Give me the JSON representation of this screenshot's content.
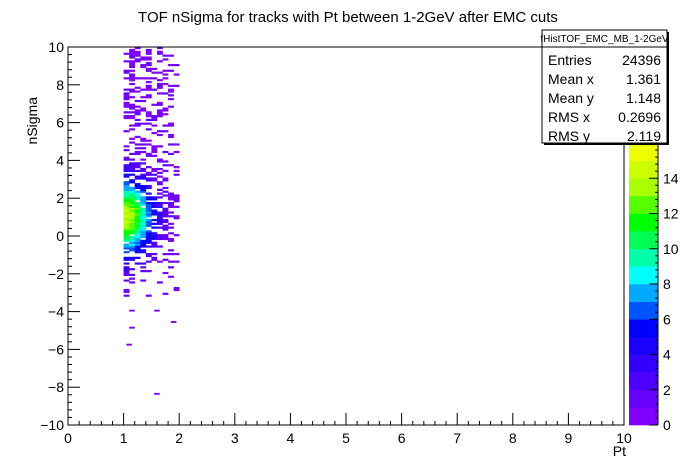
{
  "chart_data": {
    "type": "heatmap",
    "title": "TOF nSigma for tracks with Pt between 1-2GeV after EMC cuts",
    "xlabel": "Pt",
    "ylabel": "nSigma",
    "xlim": [
      0,
      10
    ],
    "ylim": [
      -10,
      10
    ],
    "x_ticks": [
      "0",
      "1",
      "2",
      "3",
      "4",
      "5",
      "6",
      "7",
      "8",
      "9",
      "10"
    ],
    "y_ticks": [
      "−10",
      "−8",
      "−6",
      "−4",
      "−2",
      "0",
      "2",
      "4",
      "6",
      "8",
      "10"
    ],
    "zlim": [
      0,
      16
    ],
    "z_ticks": [
      "0",
      "2",
      "4",
      "6",
      "8",
      "10",
      "12",
      "14"
    ],
    "palette": [
      "#8000ff",
      "#6600ff",
      "#4d00ff",
      "#3300ff",
      "#1a00ff",
      "#0000ff",
      "#0055ff",
      "#00aaff",
      "#00ffff",
      "#00ffaa",
      "#00ff55",
      "#00ff00",
      "#55ff00",
      "#aaff00",
      "#ccff00",
      "#eeff00"
    ],
    "stats": {
      "name": "fHistTOF_EMC_MB_1-2GeV",
      "rows": [
        {
          "label": "Entries",
          "value": "24396"
        },
        {
          "label": "Mean x",
          "value": "1.361"
        },
        {
          "label": "Mean y",
          "value": "1.148"
        },
        {
          "label": "RMS x",
          "value": "0.2696"
        },
        {
          "label": "RMS y",
          "value": "2.119"
        }
      ]
    },
    "distribution": {
      "x_range": [
        1.0,
        2.0
      ],
      "core_y_range": [
        -3.2,
        10
      ],
      "peak": {
        "x": 1.05,
        "y": 1.0
      },
      "outliers": [
        {
          "x": 1.05,
          "y": -5.7
        },
        {
          "x": 1.1,
          "y": -4.8
        },
        {
          "x": 1.55,
          "y": -8.3
        },
        {
          "x": 1.85,
          "y": -4.5
        },
        {
          "x": 1.55,
          "y": -3.9
        },
        {
          "x": 1.1,
          "y": -3.9
        }
      ]
    }
  }
}
